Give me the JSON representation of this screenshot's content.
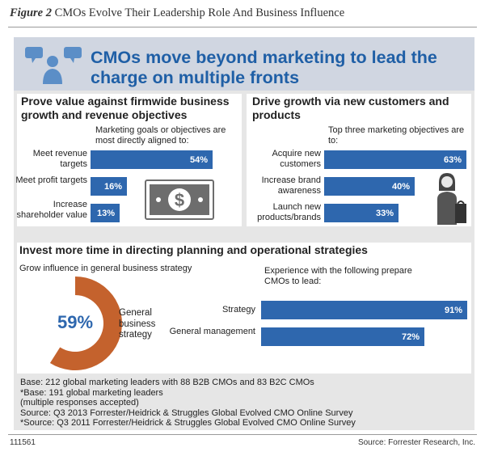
{
  "figure": {
    "label": "Figure 2",
    "title": "CMOs Evolve Their Leadership Role And Business Influence"
  },
  "headline": "CMOs move beyond marketing to lead the charge on multiple fronts",
  "sections": {
    "prove_value": {
      "title": "Prove value against firmwide business growth and revenue objectives",
      "subtitle": "Marketing goals or objectives are most directly aligned to:"
    },
    "drive_growth": {
      "title": "Drive growth via new customers and products",
      "subtitle": "Top three marketing objectives are to:"
    },
    "invest_time": {
      "title": "Invest more time in directing planning and operational strategies",
      "left_subtitle": "Grow influence in general business strategy",
      "right_subtitle": "Experience with the following prepare CMOs to lead:"
    }
  },
  "chart_data": [
    {
      "type": "bar",
      "orientation": "horizontal",
      "title": "Marketing goals or objectives are most directly aligned to:",
      "categories": [
        "Meet revenue targets",
        "Meet profit targets",
        "Increase shareholder value"
      ],
      "values": [
        54,
        16,
        13
      ],
      "labels": [
        "54%",
        "16%",
        "13%"
      ],
      "xlim": [
        0,
        100
      ]
    },
    {
      "type": "bar",
      "orientation": "horizontal",
      "title": "Top three marketing objectives are to:",
      "categories": [
        "Acquire new customers",
        "Increase brand awareness",
        "Launch new products/brands"
      ],
      "values": [
        63,
        40,
        33
      ],
      "labels": [
        "63%",
        "40%",
        "33%"
      ],
      "xlim": [
        0,
        100
      ]
    },
    {
      "type": "pie",
      "title": "Grow influence in general business strategy",
      "categories": [
        "General business strategy"
      ],
      "values": [
        59
      ],
      "label": "59%",
      "color": "#c4622d"
    },
    {
      "type": "bar",
      "orientation": "horizontal",
      "title": "Experience with the following prepare CMOs to lead:",
      "categories": [
        "Strategy",
        "General management"
      ],
      "values": [
        91,
        72
      ],
      "labels": [
        "91%",
        "72%"
      ],
      "xlim": [
        0,
        100
      ]
    }
  ],
  "base_notes": [
    "Base: 212 global marketing leaders with 88 B2B CMOs and 83 B2C CMOs",
    "*Base: 191 global marketing leaders",
    "(multiple responses accepted)",
    "Source: Q3 2013 Forrester/Heidrick & Struggles Global Evolved CMO Online Survey",
    "*Source: Q3 2011 Forrester/Heidrick & Struggles Global Evolved CMO Online Survey"
  ],
  "footer": {
    "id": "111561",
    "source": "Source: Forrester Research, Inc."
  },
  "colors": {
    "bar": "#2e67ae",
    "headline": "#1f5fa6",
    "donut": "#c4622d",
    "header_bg": "#d0d6e1",
    "panel_bg": "#e6e6e6",
    "icon": "#5b8ec7"
  }
}
